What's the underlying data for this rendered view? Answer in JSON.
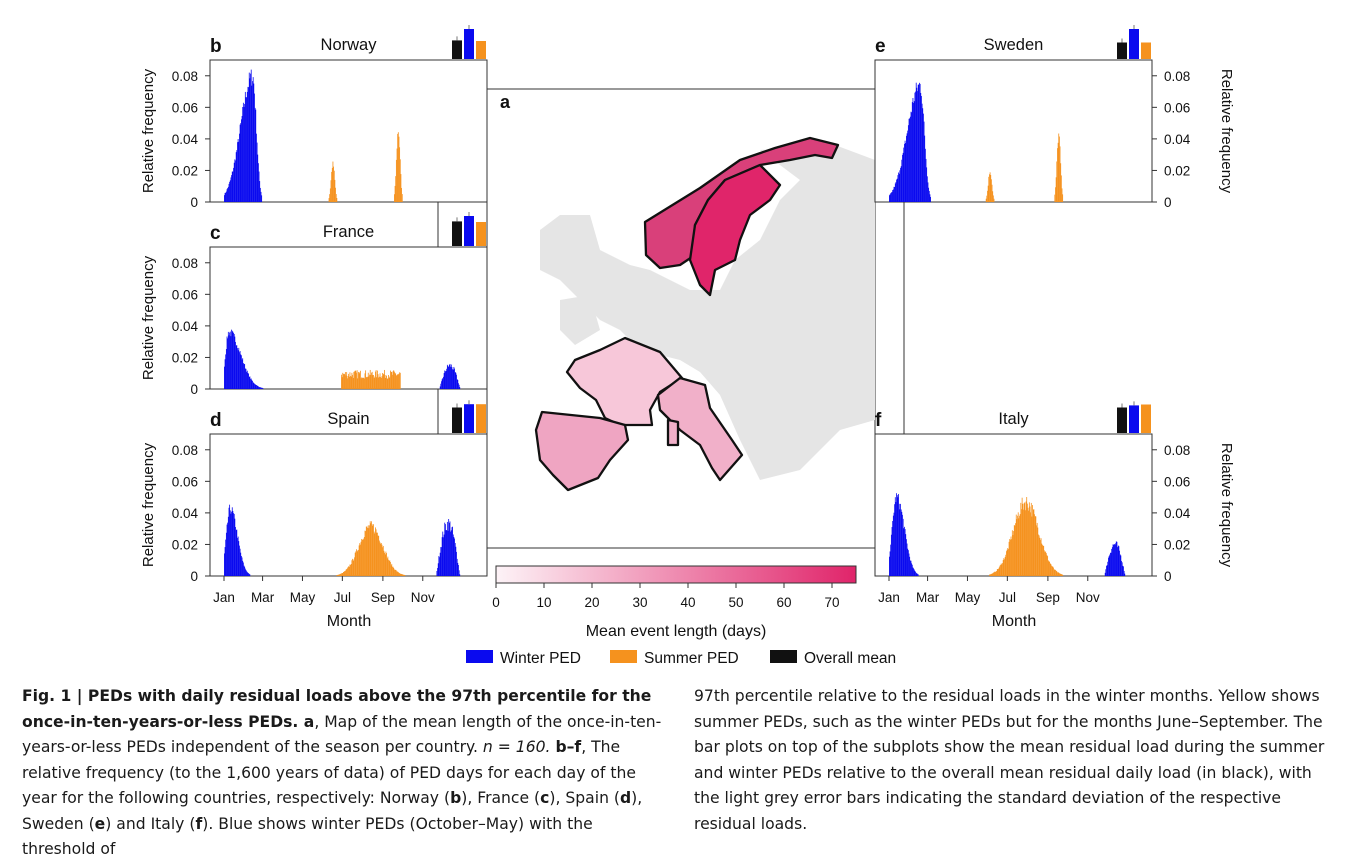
{
  "colors": {
    "winter": "#0a0aef",
    "summer": "#f5921e",
    "overall": "#111111",
    "cbar_low": "#fdf3f7",
    "cbar_high": "#e0246a",
    "land": "#e5e5e5"
  },
  "chart_data": {
    "type": "bar",
    "shared": {
      "ylabel": "Relative frequency",
      "xlabel": "Month",
      "ylim": [
        0,
        0.09
      ],
      "yticks": [
        "0",
        "0.02",
        "0.04",
        "0.06",
        "0.08"
      ],
      "xticks": [
        "Jan",
        "Mar",
        "May",
        "Jul",
        "Sep",
        "Nov"
      ]
    },
    "panels": [
      {
        "letter": "b",
        "country": "Norway",
        "side": "left",
        "winter_peak_day": 44,
        "winter_peak": 0.086,
        "winter_start": 1,
        "winter_end": 58,
        "summer_peaks": [
          {
            "day": 167,
            "v": 0.026
          },
          {
            "day": 267,
            "v": 0.049
          }
        ],
        "mean_bars": {
          "overall": 0.62,
          "winter": 1.0,
          "summer": 0.6
        }
      },
      {
        "letter": "c",
        "country": "France",
        "side": "left",
        "winter_peak_day": 8,
        "winter_peak": 0.039,
        "winter_start": 1,
        "winter_end": 60,
        "winter2": {
          "start": 330,
          "end": 365,
          "peak": 0.017
        },
        "summer_flat": {
          "start": 180,
          "end": 270,
          "v": 0.011
        },
        "mean_bars": {
          "overall": 0.82,
          "winter": 1.0,
          "summer": 0.8
        }
      },
      {
        "letter": "d",
        "country": "Spain",
        "side": "left",
        "winter_peak_day": 10,
        "winter_peak": 0.046,
        "winter_start": 1,
        "winter_end": 40,
        "winter2": {
          "start": 325,
          "end": 365,
          "peak": 0.038
        },
        "summer_bell": {
          "center": 225,
          "width": 26,
          "v": 0.035
        },
        "mean_bars": {
          "overall": 0.85,
          "winter": 0.96,
          "summer": 0.96
        }
      },
      {
        "letter": "e",
        "country": "Sweden",
        "side": "right",
        "winter_peak_day": 48,
        "winter_peak": 0.08,
        "winter_start": 1,
        "winter_end": 64,
        "summer_peaks": [
          {
            "day": 155,
            "v": 0.021
          },
          {
            "day": 260,
            "v": 0.046
          }
        ],
        "mean_bars": {
          "overall": 0.55,
          "winter": 1.0,
          "summer": 0.55
        }
      },
      {
        "letter": "f",
        "country": "Italy",
        "side": "right",
        "winter_peak_day": 12,
        "winter_peak": 0.054,
        "winter_start": 1,
        "winter_end": 45,
        "winter2": {
          "start": 330,
          "end": 365,
          "peak": 0.023
        },
        "summer_bell": {
          "center": 210,
          "width": 28,
          "v": 0.052
        },
        "mean_bars": {
          "overall": 0.85,
          "winter": 0.92,
          "summer": 0.95
        }
      }
    ],
    "map": {
      "label": "a",
      "colorbar_label": "Mean event length (days)",
      "colorbar_ticks": [
        "0",
        "10",
        "20",
        "30",
        "40",
        "50",
        "60",
        "70"
      ],
      "colorbar_range": [
        0,
        75
      ]
    },
    "legend": [
      "Winter PED",
      "Summer PED",
      "Overall mean"
    ]
  },
  "caption": {
    "fig_label": "Fig. 1 | PEDs with daily residual loads above the 97th percentile for the once-in-ten-years-or-less PEDs.",
    "left_rest_1": " a",
    "left_rest_2": ", Map of the mean length of the once-in-ten-years-or-less PEDs independent of the season per country. ",
    "left_n": "n = 160. ",
    "left_rest_3": "b–f",
    "left_rest_4": ", The relative frequency (to the 1,600 years of data) of PED days for each day of the year for the following countries, respectively: Norway (",
    "left_b": "b",
    "left_r5": "), France (",
    "left_c": "c",
    "left_r6": "), Spain (",
    "left_d": "d",
    "left_r7": "), Sweden (",
    "left_e": "e",
    "left_r8": ") and Italy (",
    "left_f": "f",
    "left_r9": "). Blue shows winter PEDs (October–May) with the threshold of",
    "right": "97th percentile relative to the residual loads in the winter months. Yellow shows summer PEDs, such as the winter PEDs but for the months June–September. The bar plots on top of the subplots show the mean residual load during the summer and winter PEDs relative to the overall mean residual daily load (in black), with the light grey error bars indicating the standard deviation of the respective residual loads."
  }
}
